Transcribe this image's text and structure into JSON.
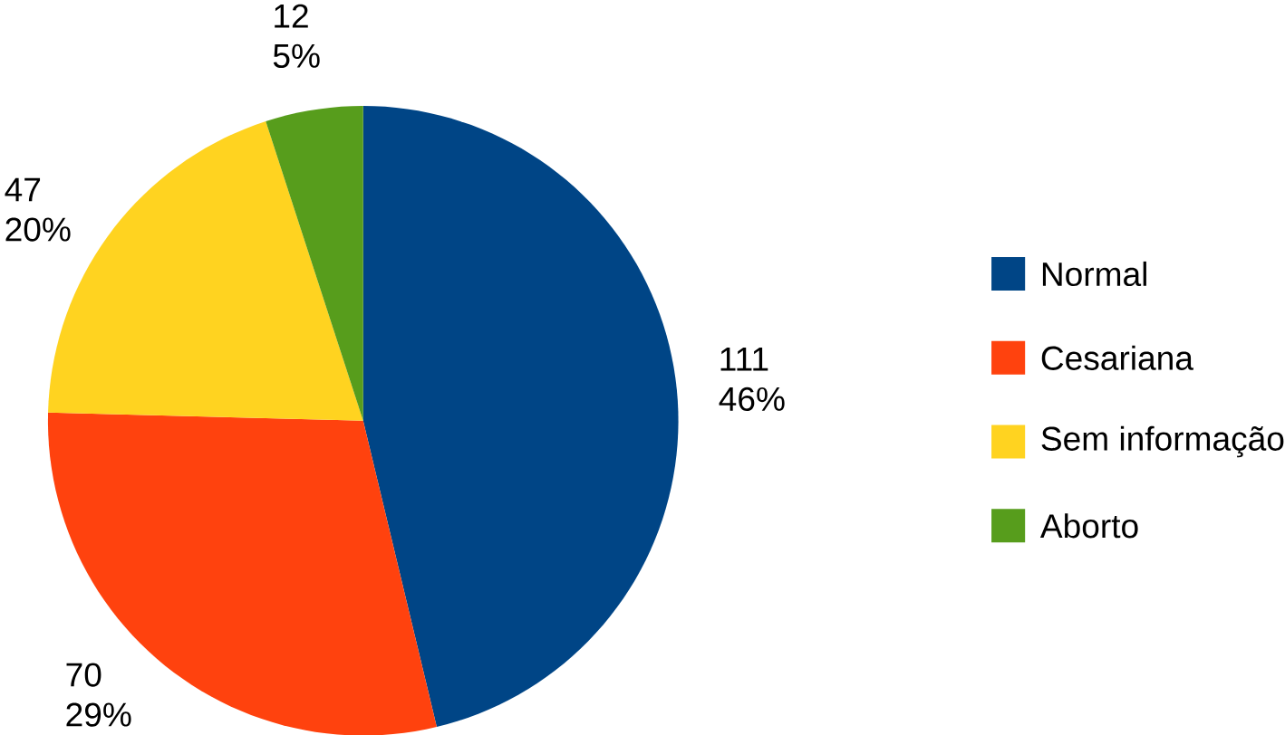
{
  "chart_data": {
    "type": "pie",
    "categories": [
      "Normal",
      "Cesariana",
      "Sem informação",
      "Aborto"
    ],
    "values": [
      111,
      70,
      47,
      12
    ],
    "value_labels": [
      "111 46%",
      "70 29%",
      "47 20%",
      "12 5%"
    ],
    "colors": [
      "#004586",
      "#ff420e",
      "#ffd320",
      "#579d1c"
    ],
    "legend": "right"
  }
}
